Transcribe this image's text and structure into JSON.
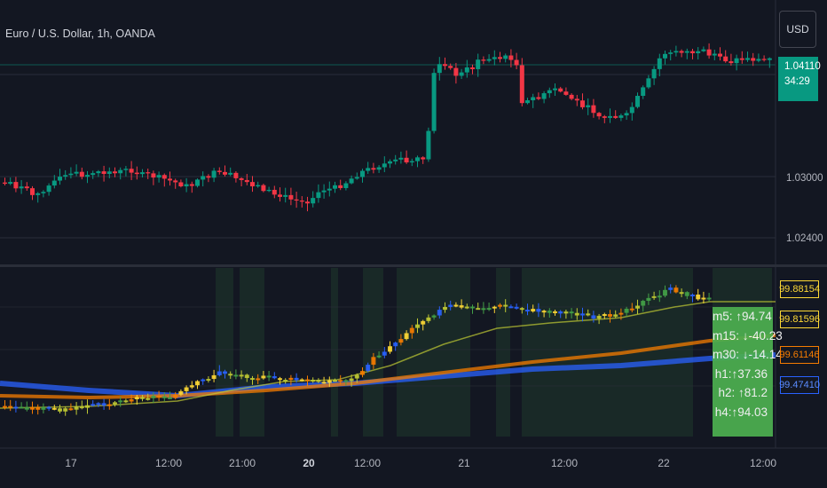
{
  "chart_data": {
    "type": "candlestick",
    "title": "Euro / U.S. Dollar, 1h, OANDA",
    "currency": "USD",
    "last_price": "1.04110",
    "countdown": "34:29",
    "price_ticks": [
      "1.03000",
      "1.02400"
    ],
    "x_tick_labels": [
      {
        "label": "17",
        "bold": false
      },
      {
        "label": "12:00",
        "bold": false
      },
      {
        "label": "21:00",
        "bold": false
      },
      {
        "label": "20",
        "bold": true
      },
      {
        "label": "12:00",
        "bold": false
      },
      {
        "label": "21",
        "bold": false
      },
      {
        "label": "12:00",
        "bold": false
      },
      {
        "label": "22",
        "bold": false
      },
      {
        "label": "12:00",
        "bold": false
      }
    ],
    "indicator": {
      "values": [
        "99.88154",
        "99.81596",
        "99.61146",
        "99.47410"
      ],
      "value_colors": [
        "#fdd835",
        "#fdd835",
        "#f57c00",
        "#2962ff"
      ],
      "table": [
        "m5: ↑94.74",
        "m15: ↓-40.23",
        "m30: ↓-14.14",
        "h1:↑37.36",
        "h2: ↑81.2",
        "h4:↑94.03"
      ]
    }
  },
  "colors": {
    "up": "#089981",
    "down": "#f23645",
    "background": "#131722",
    "grid": "#2a2e39"
  }
}
